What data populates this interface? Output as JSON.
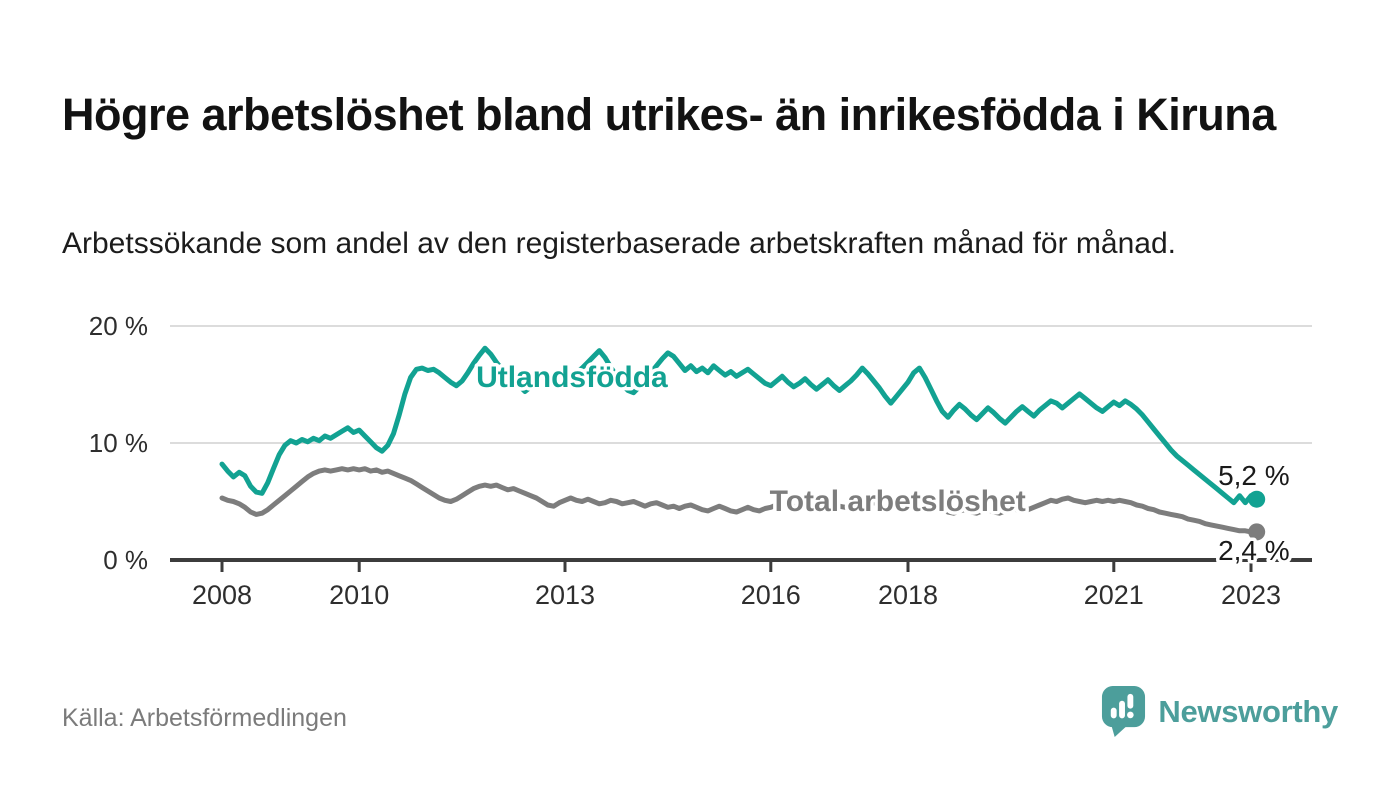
{
  "header": {
    "title": "Högre arbetslöshet bland utrikes- än inrikesfödda i Kiruna",
    "subtitle": "Arbetssökande som andel av den registerbaserade arbetskraften månad för månad."
  },
  "footer": {
    "source": "Källa: Arbetsförmedlingen",
    "brand": "Newsworthy"
  },
  "colors": {
    "accent_teal": "#12a292",
    "series_gray": "#7d7d7d",
    "axis": "#3c3c3c",
    "grid": "#dcdcdc",
    "value_label": "#1a1a1a",
    "logo_teal": "#4c9e9b",
    "source_gray": "#7b7b7b"
  },
  "chart_data": {
    "type": "line",
    "unit": "%",
    "grid": "horizontal",
    "legend": "inline-labels",
    "x_range_years": [
      2007.25,
      2023.9
    ],
    "ylim": [
      0,
      20.3
    ],
    "x_ticks": [
      2008,
      2010,
      2013,
      2016,
      2018,
      2021,
      2023
    ],
    "y_ticks": [
      {
        "v": 0,
        "label": "0 %"
      },
      {
        "v": 10,
        "label": "10 %"
      },
      {
        "v": 20,
        "label": "20 %"
      }
    ],
    "series": [
      {
        "id": "utlandsfodda",
        "name": "Utlandsfödda",
        "color": "#12a292",
        "start_year": 2008,
        "interval": "monthly",
        "end_label": "5,2 %",
        "label_at": [
          2013.1,
          14.8
        ],
        "values": [
          8.2,
          7.6,
          7.1,
          7.5,
          7.2,
          6.3,
          5.8,
          5.7,
          6.6,
          7.8,
          9.0,
          9.8,
          10.2,
          10.0,
          10.3,
          10.1,
          10.4,
          10.2,
          10.6,
          10.4,
          10.7,
          11.0,
          11.3,
          10.9,
          11.1,
          10.6,
          10.1,
          9.6,
          9.3,
          9.8,
          10.8,
          12.4,
          14.2,
          15.6,
          16.3,
          16.4,
          16.2,
          16.3,
          16.0,
          15.6,
          15.2,
          14.9,
          15.3,
          16.0,
          16.8,
          17.5,
          18.1,
          17.6,
          16.9,
          16.3,
          15.8,
          15.3,
          14.9,
          14.4,
          14.8,
          15.3,
          15.6,
          15.2,
          15.0,
          15.4,
          15.2,
          15.6,
          16.0,
          16.4,
          16.9,
          17.4,
          17.9,
          17.3,
          16.5,
          15.7,
          15.0,
          14.5,
          14.3,
          14.8,
          15.4,
          16.0,
          16.6,
          17.2,
          17.7,
          17.4,
          16.8,
          16.2,
          16.6,
          16.1,
          16.4,
          16.0,
          16.6,
          16.2,
          15.8,
          16.1,
          15.7,
          16.0,
          16.3,
          15.9,
          15.5,
          15.1,
          14.9,
          15.3,
          15.7,
          15.2,
          14.8,
          15.1,
          15.5,
          15.0,
          14.6,
          15.0,
          15.4,
          14.9,
          14.5,
          14.9,
          15.3,
          15.8,
          16.4,
          15.9,
          15.3,
          14.7,
          14.0,
          13.4,
          14.0,
          14.6,
          15.2,
          16.0,
          16.4,
          15.6,
          14.6,
          13.6,
          12.7,
          12.2,
          12.8,
          13.3,
          12.9,
          12.4,
          12.0,
          12.5,
          13.0,
          12.6,
          12.1,
          11.7,
          12.2,
          12.7,
          13.1,
          12.7,
          12.3,
          12.8,
          13.2,
          13.6,
          13.4,
          13.0,
          13.4,
          13.8,
          14.2,
          13.8,
          13.4,
          13.0,
          12.7,
          13.1,
          13.5,
          13.2,
          13.6,
          13.3,
          12.9,
          12.4,
          11.8,
          11.2,
          10.6,
          10.0,
          9.4,
          8.9,
          8.5,
          8.1,
          7.7,
          7.3,
          6.9,
          6.5,
          6.1,
          5.7,
          5.3,
          4.9,
          5.5,
          4.9,
          5.5,
          5.2
        ]
      },
      {
        "id": "total-arbetsloshet",
        "name": "Total arbetslöshet",
        "color": "#7d7d7d",
        "start_year": 2008,
        "interval": "monthly",
        "end_label": "2,4 %",
        "label_at": [
          2017.85,
          4.2
        ],
        "values": [
          5.3,
          5.1,
          5.0,
          4.8,
          4.5,
          4.1,
          3.9,
          4.0,
          4.3,
          4.7,
          5.1,
          5.5,
          5.9,
          6.3,
          6.7,
          7.1,
          7.4,
          7.6,
          7.7,
          7.6,
          7.7,
          7.8,
          7.7,
          7.8,
          7.7,
          7.8,
          7.6,
          7.7,
          7.5,
          7.6,
          7.4,
          7.2,
          7.0,
          6.8,
          6.5,
          6.2,
          5.9,
          5.6,
          5.3,
          5.1,
          5.0,
          5.2,
          5.5,
          5.8,
          6.1,
          6.3,
          6.4,
          6.3,
          6.4,
          6.2,
          6.0,
          6.1,
          5.9,
          5.7,
          5.5,
          5.3,
          5.0,
          4.7,
          4.6,
          4.9,
          5.1,
          5.3,
          5.1,
          5.0,
          5.2,
          5.0,
          4.8,
          4.9,
          5.1,
          5.0,
          4.8,
          4.9,
          5.0,
          4.8,
          4.6,
          4.8,
          4.9,
          4.7,
          4.5,
          4.6,
          4.4,
          4.6,
          4.7,
          4.5,
          4.3,
          4.2,
          4.4,
          4.6,
          4.4,
          4.2,
          4.1,
          4.3,
          4.5,
          4.3,
          4.2,
          4.4,
          4.5,
          4.7,
          4.6,
          4.8,
          4.6,
          4.5,
          4.7,
          4.8,
          4.6,
          4.5,
          4.6,
          4.7,
          4.6,
          4.5,
          4.7,
          4.8,
          4.6,
          4.7,
          4.9,
          4.8,
          4.6,
          4.5,
          4.7,
          4.8,
          4.7,
          4.5,
          4.3,
          4.2,
          4.4,
          4.5,
          4.3,
          4.1,
          4.0,
          4.2,
          4.3,
          4.1,
          4.0,
          4.2,
          4.3,
          4.1,
          4.0,
          4.2,
          4.4,
          4.3,
          4.2,
          4.3,
          4.5,
          4.7,
          4.9,
          5.1,
          5.0,
          5.2,
          5.3,
          5.1,
          5.0,
          4.9,
          5.0,
          5.1,
          5.0,
          5.1,
          5.0,
          5.1,
          5.0,
          4.9,
          4.7,
          4.6,
          4.4,
          4.3,
          4.1,
          4.0,
          3.9,
          3.8,
          3.7,
          3.5,
          3.4,
          3.3,
          3.1,
          3.0,
          2.9,
          2.8,
          2.7,
          2.6,
          2.5,
          2.5,
          2.4,
          2.4
        ]
      }
    ]
  }
}
